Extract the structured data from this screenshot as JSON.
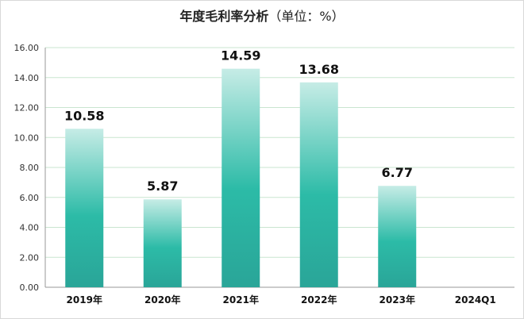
{
  "chart_data": {
    "type": "bar",
    "title": "年度毛利率分析",
    "unit_note": "（单位：%）",
    "categories": [
      "2019年",
      "2020年",
      "2021年",
      "2022年",
      "2023年",
      "2024Q1"
    ],
    "values": [
      10.58,
      5.87,
      14.59,
      13.68,
      6.77,
      null
    ],
    "value_labels": [
      "10.58",
      "5.87",
      "14.59",
      "13.68",
      "6.77",
      ""
    ],
    "y_ticks": [
      "0.00",
      "2.00",
      "4.00",
      "6.00",
      "8.00",
      "10.00",
      "12.00",
      "14.00",
      "16.00"
    ],
    "ylim": [
      0,
      16
    ],
    "grid": true,
    "legend": "none",
    "colors": {
      "bar_top": "#c6ece6",
      "bar_mid": "#2cbba7",
      "bar_bottom": "#2aa598",
      "grid": "#c9e5cf"
    }
  }
}
